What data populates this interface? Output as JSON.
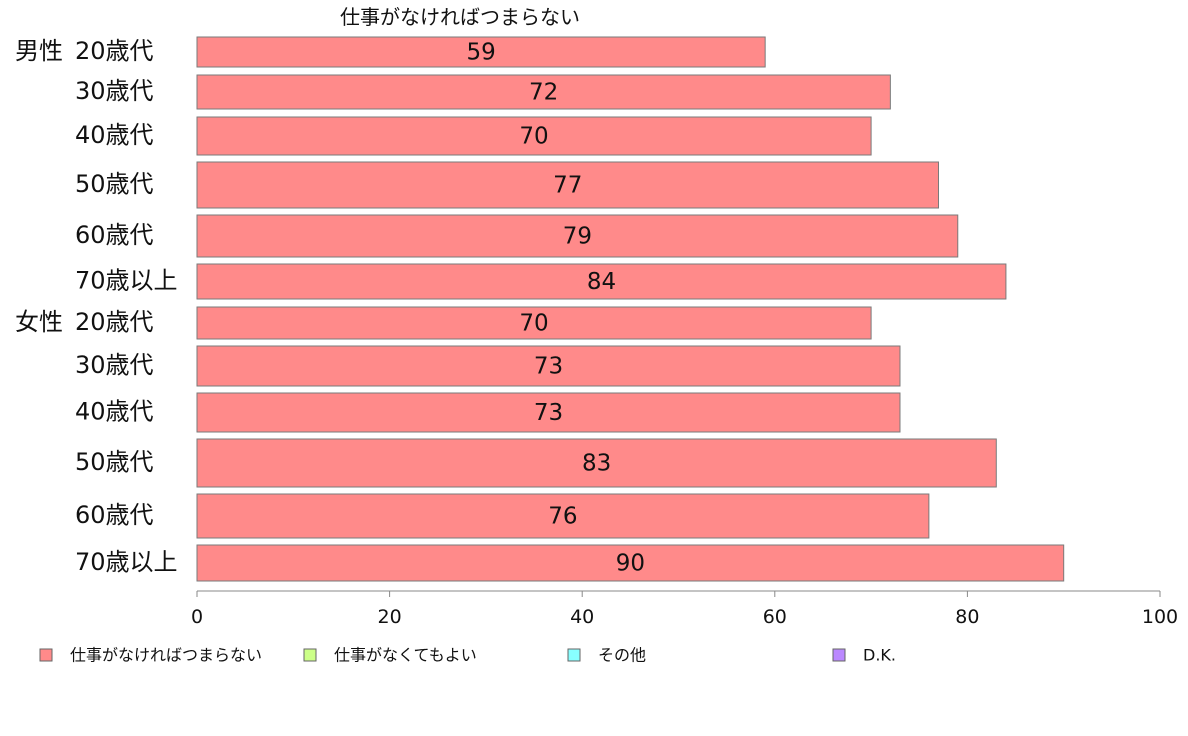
{
  "chart_data": {
    "type": "bar",
    "orientation": "horizontal",
    "title": "仕事がなければつまらない",
    "groups": [
      {
        "label": "男性",
        "start_index": 0
      },
      {
        "label": "女性",
        "start_index": 6
      }
    ],
    "categories": [
      "20歳代",
      "30歳代",
      "40歳代",
      "50歳代",
      "60歳代",
      "70歳以上",
      "20歳代",
      "30歳代",
      "40歳代",
      "50歳代",
      "60歳代",
      "70歳以上"
    ],
    "series": [
      {
        "name": "仕事がなければつまらない",
        "color": "#ff8a8a",
        "values": [
          59,
          72,
          70,
          77,
          79,
          84,
          70,
          73,
          73,
          83,
          76,
          90
        ],
        "data_labels": [
          59,
          72,
          70,
          77,
          79,
          84,
          70,
          73,
          73,
          83,
          76,
          90
        ]
      }
    ],
    "xlim": [
      0,
      100
    ],
    "xticks": [
      0,
      20,
      40,
      60,
      80,
      100
    ],
    "grid": false,
    "legend": {
      "placement": "bottom",
      "entries": [
        {
          "name": "仕事がなければつまらない",
          "color": "#ff8a8a"
        },
        {
          "name": "仕事がなくてもよい",
          "color": "#ccff88"
        },
        {
          "name": "その他",
          "color": "#88ffff"
        },
        {
          "name": "D.K.",
          "color": "#bb88ff"
        }
      ]
    }
  }
}
